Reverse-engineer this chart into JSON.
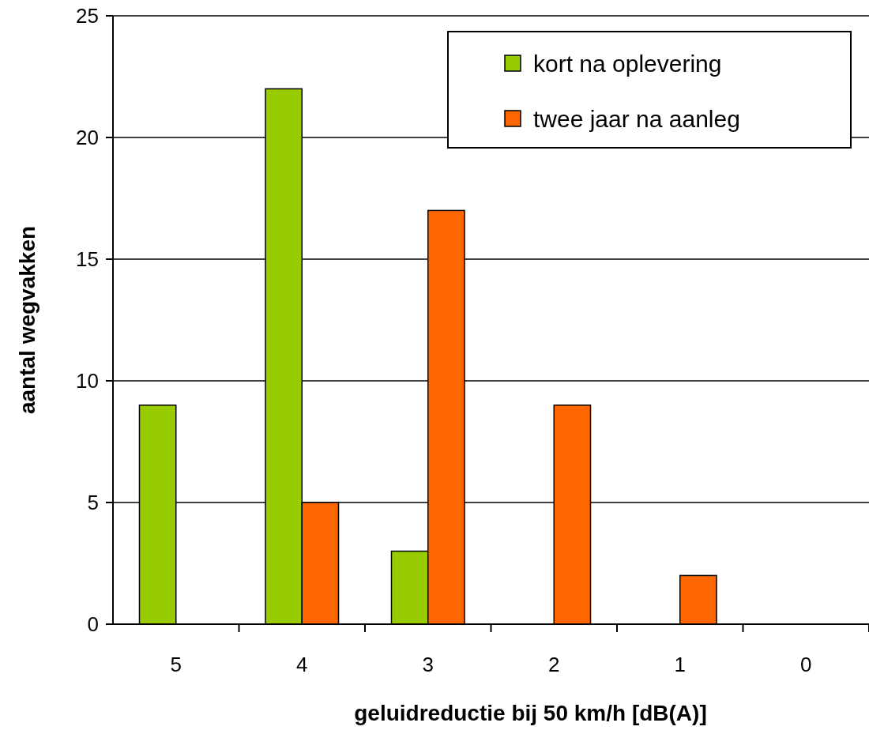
{
  "chart_data": {
    "type": "bar",
    "xlabel": "geluidreductie bij 50 km/h [dB(A)]",
    "ylabel": "aantal wegvakken",
    "categories": [
      "5",
      "4",
      "3",
      "2",
      "1",
      "0"
    ],
    "series": [
      {
        "name": "kort na oplevering",
        "color": "#99cc00",
        "values": [
          9,
          22,
          3,
          0,
          0,
          0
        ]
      },
      {
        "name": "twee jaar na aanleg",
        "color": "#ff6600",
        "values": [
          0,
          5,
          17,
          9,
          2,
          0
        ]
      }
    ],
    "ylim": [
      0,
      25
    ],
    "yticks": [
      0,
      5,
      10,
      15,
      20,
      25
    ],
    "grid": "y",
    "legend": "top right"
  }
}
